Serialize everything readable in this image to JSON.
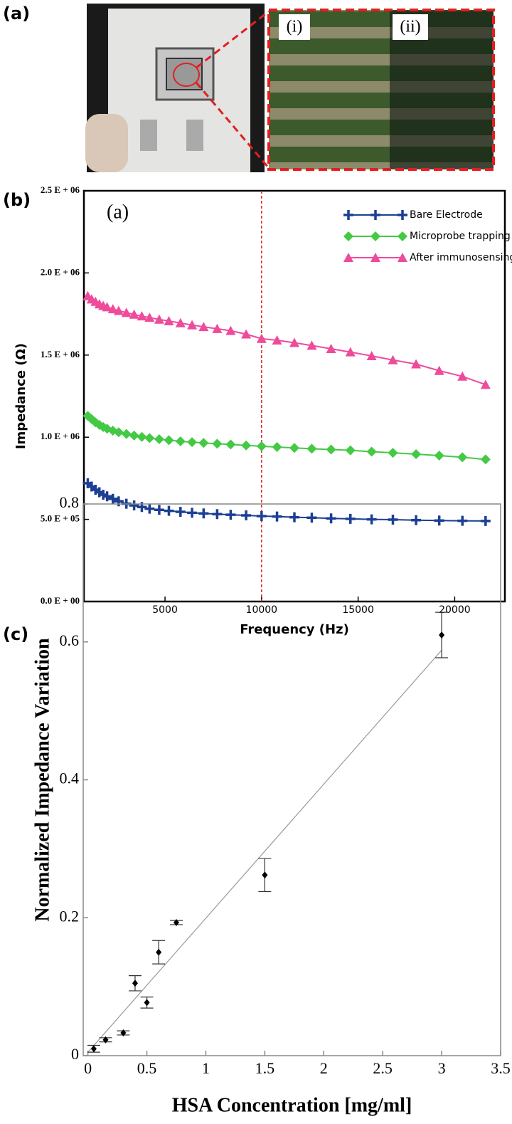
{
  "panel_labels": [
    "(a)",
    "(b)",
    "(c)"
  ],
  "photo_labels": [
    "(i)",
    "(ii)"
  ],
  "chart_data": [
    {
      "type": "line",
      "annotation": "(a)",
      "xlabel": "Frequency (Hz)",
      "ylabel": "Impedance (Ω)",
      "x": [
        1000,
        1200,
        1400,
        1600,
        1800,
        2000,
        2300,
        2600,
        3000,
        3400,
        3800,
        4200,
        4700,
        5200,
        5800,
        6400,
        7000,
        7700,
        8400,
        9200,
        10000,
        10800,
        11700,
        12600,
        13600,
        14600,
        15700,
        16800,
        18000,
        19200,
        20400,
        21600
      ],
      "series": [
        {
          "name": "Bare Electrode",
          "color": "#1c3f94",
          "marker": "plus",
          "values": [
            720000,
            700000,
            680000,
            665000,
            650000,
            640000,
            625000,
            610000,
            595000,
            585000,
            575000,
            565000,
            558000,
            552000,
            546000,
            540000,
            536000,
            532000,
            528000,
            524000,
            520000,
            517000,
            513000,
            510000,
            506000,
            503000,
            500000,
            498000,
            495000,
            493000,
            491000,
            490000
          ]
        },
        {
          "name": "Microprobe trapping",
          "color": "#44c944",
          "marker": "diamond",
          "values": [
            1130000,
            1110000,
            1090000,
            1075000,
            1062000,
            1052000,
            1040000,
            1030000,
            1020000,
            1010000,
            1002000,
            995000,
            988000,
            982000,
            975000,
            970000,
            965000,
            960000,
            956000,
            950000,
            945000,
            940000,
            935000,
            930000,
            925000,
            920000,
            912000,
            905000,
            897000,
            888000,
            878000,
            865000
          ]
        },
        {
          "name": "After immunosensing",
          "color": "#ef4b9b",
          "marker": "triangle",
          "values": [
            1860000,
            1840000,
            1825000,
            1810000,
            1800000,
            1792000,
            1780000,
            1770000,
            1758000,
            1747000,
            1737000,
            1728000,
            1717000,
            1707000,
            1695000,
            1683000,
            1672000,
            1660000,
            1648000,
            1627000,
            1600000,
            1590000,
            1575000,
            1558000,
            1538000,
            1518000,
            1495000,
            1470000,
            1445000,
            1405000,
            1370000,
            1320000
          ]
        }
      ],
      "xlim": [
        800,
        22600
      ],
      "xticks": [
        5000,
        10000,
        15000,
        20000
      ],
      "ylim": [
        0,
        2500000
      ],
      "yticks": [
        {
          "value": 0,
          "label": "0.0 E + 00"
        },
        {
          "value": 500000,
          "label": "5.0 E + 05"
        },
        {
          "value": 1000000,
          "label": "1.0 E + 06"
        },
        {
          "value": 1500000,
          "label": "1.5 E + 06"
        },
        {
          "value": 2000000,
          "label": "2.0 E + 06"
        },
        {
          "value": 2500000,
          "label": "2.5 E + 06"
        }
      ],
      "reference_line_x": 10000,
      "reference_line_color": "#e02020",
      "legend": "upper right"
    },
    {
      "type": "scatter",
      "xlabel": "HSA Concentration [mg/ml]",
      "ylabel": "Normalized Impedance Variation",
      "x": [
        0.05,
        0.15,
        0.3,
        0.4,
        0.5,
        0.6,
        0.75,
        1.5,
        3.0
      ],
      "values": [
        0.01,
        0.023,
        0.033,
        0.105,
        0.077,
        0.15,
        0.193,
        0.262,
        0.61
      ],
      "errors": [
        0.005,
        0.003,
        0.003,
        0.011,
        0.008,
        0.017,
        0.003,
        0.024,
        0.033
      ],
      "color": "#000000",
      "fit_line": {
        "x": [
          0,
          3.0
        ],
        "y": [
          0.005,
          0.588
        ],
        "color": "#999999"
      },
      "xlim": [
        -0.04,
        3.5
      ],
      "xticks": [
        0,
        0.5,
        1,
        1.5,
        2,
        2.5,
        3,
        3.5
      ],
      "ylim": [
        0,
        0.8
      ],
      "yticks": [
        0,
        0.2,
        0.4,
        0.6,
        0.8
      ]
    }
  ]
}
